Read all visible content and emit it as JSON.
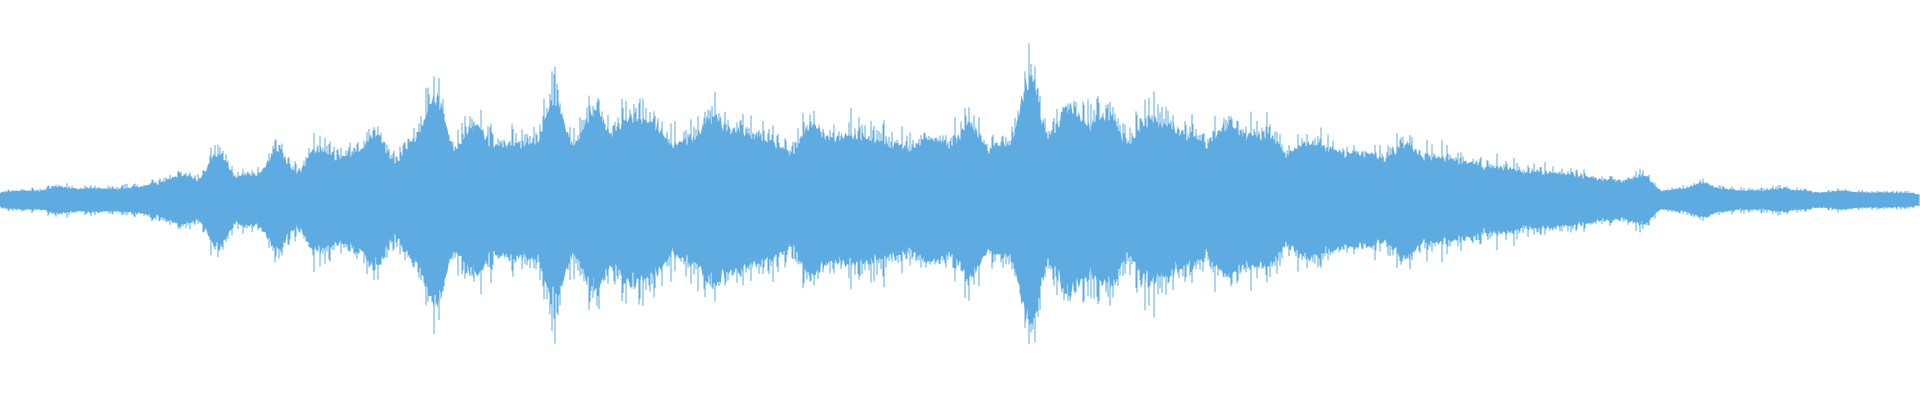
{
  "chart_data": {
    "type": "area",
    "title": "",
    "xlabel": "",
    "ylabel": "",
    "grid": false,
    "legend": "none",
    "ylim": [
      -1,
      1
    ],
    "color": "#5DABE0",
    "background": "#FFFFFF",
    "envelope_amplitude": [
      0.04,
      0.05,
      0.05,
      0.07,
      0.06,
      0.06,
      0.06,
      0.07,
      0.09,
      0.125,
      0.11,
      0.25,
      0.125,
      0.14,
      0.26,
      0.15,
      0.275,
      0.225,
      0.25,
      0.35,
      0.2,
      0.325,
      0.55,
      0.275,
      0.4,
      0.29,
      0.3,
      0.3,
      0.525,
      0.3,
      0.475,
      0.35,
      0.45,
      0.4,
      0.3,
      0.325,
      0.45,
      0.375,
      0.35,
      0.3,
      0.25,
      0.4,
      0.325,
      0.35,
      0.325,
      0.3,
      0.275,
      0.325,
      0.3,
      0.4,
      0.275,
      0.3,
      0.65,
      0.35,
      0.5,
      0.4,
      0.45,
      0.3,
      0.425,
      0.4,
      0.35,
      0.3,
      0.4,
      0.35,
      0.35,
      0.25,
      0.3,
      0.275,
      0.25,
      0.25,
      0.225,
      0.3,
      0.225,
      0.225,
      0.2,
      0.175,
      0.175,
      0.15,
      0.15,
      0.14,
      0.125,
      0.11,
      0.1,
      0.125,
      0.05,
      0.06,
      0.09,
      0.06,
      0.05,
      0.05,
      0.06,
      0.05,
      0.04,
      0.05,
      0.04,
      0.04,
      0.04,
      0.03
    ]
  }
}
